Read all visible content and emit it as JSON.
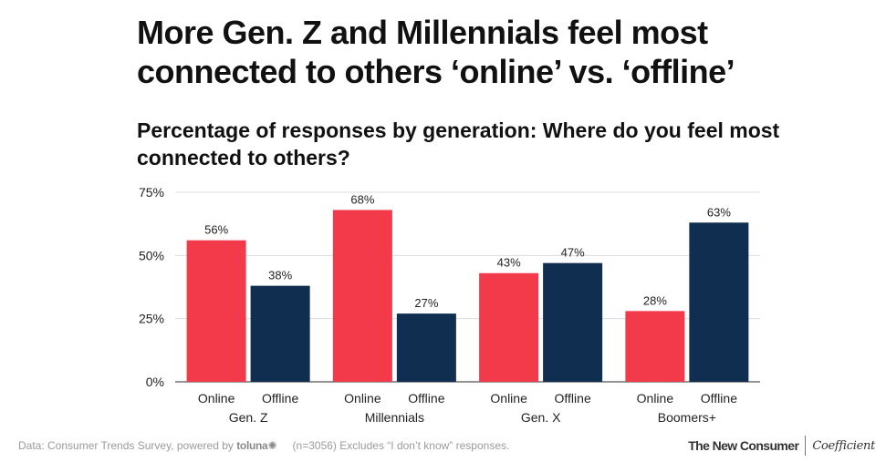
{
  "title": "More Gen. Z and Millennials feel most connected to others ‘online’ vs. ‘offline’",
  "subtitle": "Percentage of responses by generation: Where do you feel most connected to others?",
  "chart_data": {
    "type": "bar",
    "categories": [
      "Gen. Z",
      "Millennials",
      "Gen. X",
      "Boomers+"
    ],
    "series": [
      {
        "name": "Online",
        "color": "#f33a4b",
        "values": [
          56,
          68,
          43,
          28
        ]
      },
      {
        "name": "Offline",
        "color": "#0f2e50",
        "values": [
          38,
          27,
          47,
          63
        ]
      }
    ],
    "ylim": [
      0,
      75
    ],
    "yticks": [
      0,
      25,
      50,
      75
    ],
    "ytick_labels": [
      "0%",
      "25%",
      "50%",
      "75%"
    ],
    "value_suffix": "%",
    "grid": true,
    "xlabel": "",
    "ylabel": ""
  },
  "footer": {
    "source": "Data: Consumer Trends Survey, powered by",
    "toluna": "toluna",
    "toluna_mark": "✺",
    "note": "(n=3056) Excludes “I don’t know” responses.",
    "brand_left": "The New Consumer",
    "brand_right": "Coefficient"
  }
}
